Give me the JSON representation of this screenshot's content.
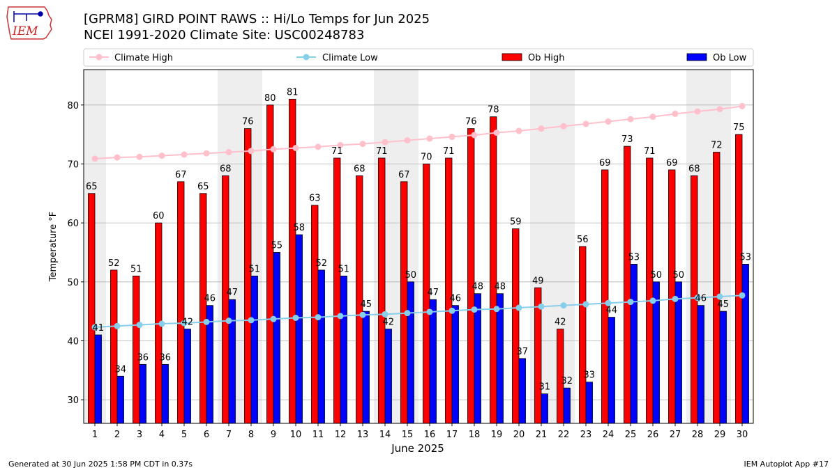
{
  "page": {
    "logo_text": "IEM",
    "title_line1": "[GPRM8] GIRD POINT RAWS :: Hi/Lo Temps for Jun 2025",
    "title_line2": "NCEI 1991-2020 Climate Site: USC00248783",
    "footer_left": "Generated at 30 Jun 2025 1:58 PM CDT in 0.37s",
    "footer_right": "IEM Autoplot App #17"
  },
  "chart_data": {
    "type": "bar",
    "title": "[GPRM8] GIRD POINT RAWS :: Hi/Lo Temps for Jun 2025",
    "subtitle": "NCEI 1991-2020 Climate Site: USC00248783",
    "xlabel": "June 2025",
    "ylabel": "Temperature °F",
    "categories": [
      "1",
      "2",
      "3",
      "4",
      "5",
      "6",
      "7",
      "8",
      "9",
      "10",
      "11",
      "12",
      "13",
      "14",
      "15",
      "16",
      "17",
      "18",
      "19",
      "20",
      "21",
      "22",
      "23",
      "24",
      "25",
      "26",
      "27",
      "28",
      "29",
      "30"
    ],
    "ylim": [
      26,
      86
    ],
    "yticks": [
      30,
      40,
      50,
      60,
      70,
      80
    ],
    "grid": true,
    "legend_position": "top",
    "weekend_shading_days": [
      1,
      7,
      8,
      14,
      15,
      21,
      22,
      28,
      29
    ],
    "weekend_color": "#eeeeee",
    "series": [
      {
        "name": "Climate High",
        "kind": "line",
        "color": "#ffc0cb",
        "values": [
          70.9,
          71.1,
          71.2,
          71.4,
          71.6,
          71.8,
          72.0,
          72.2,
          72.5,
          72.7,
          72.9,
          73.2,
          73.4,
          73.7,
          74.0,
          74.3,
          74.6,
          74.9,
          75.3,
          75.6,
          76.0,
          76.4,
          76.8,
          77.2,
          77.6,
          78.0,
          78.5,
          78.9,
          79.3,
          79.8
        ]
      },
      {
        "name": "Climate Low",
        "kind": "line",
        "color": "#87ceeb",
        "values": [
          42.3,
          42.5,
          42.7,
          42.9,
          43.0,
          43.2,
          43.4,
          43.5,
          43.7,
          43.9,
          44.0,
          44.2,
          44.4,
          44.5,
          44.7,
          44.9,
          45.1,
          45.3,
          45.4,
          45.6,
          45.8,
          46.0,
          46.2,
          46.4,
          46.6,
          46.8,
          47.1,
          47.3,
          47.5,
          47.7
        ]
      },
      {
        "name": "Ob High",
        "kind": "bar",
        "color": "#ff0000",
        "values": [
          65,
          52,
          51,
          60,
          67,
          65,
          68,
          76,
          80,
          81,
          63,
          71,
          68,
          71,
          67,
          70,
          71,
          76,
          78,
          59,
          49,
          42,
          56,
          69,
          73,
          71,
          69,
          68,
          72,
          75
        ]
      },
      {
        "name": "Ob Low",
        "kind": "bar",
        "color": "#0000ff",
        "values": [
          41,
          34,
          36,
          36,
          42,
          46,
          47,
          51,
          55,
          58,
          52,
          51,
          45,
          42,
          50,
          47,
          46,
          48,
          48,
          37,
          31,
          32,
          33,
          44,
          53,
          50,
          50,
          46,
          45,
          53
        ]
      }
    ]
  }
}
